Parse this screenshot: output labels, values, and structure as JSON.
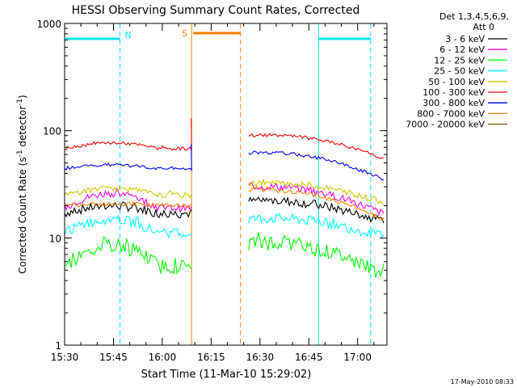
{
  "chart_data": {
    "type": "line",
    "title": "HESSI Observing Summary Count Rates, Corrected",
    "xlabel": "Start Time (11-Mar-10 15:29:02)",
    "ylabel": "Corrected Count Rate (s⁻¹ detector⁻¹)",
    "ylabel_parts": {
      "main": "Corrected Count Rate (s",
      "exp1": "-1",
      "mid": " detector",
      "exp2": "-1",
      "close": ")"
    },
    "yscale": "log",
    "ylim": [
      1,
      1000
    ],
    "xlim_minutes": [
      15.5,
      17.15
    ],
    "x_ticks": [
      "15:30",
      "15:45",
      "16:00",
      "16:15",
      "16:30",
      "16:45",
      "17:00"
    ],
    "y_ticks": [
      "1",
      "10",
      "100",
      "1000"
    ],
    "legend_header": [
      "Det 1,3,4,5,6,9,",
      "Att 0"
    ],
    "legend_placement": "right",
    "timestamp": "17-May-2010 08:33",
    "annotations": {
      "night_label": "N",
      "saa_label": "S",
      "night_intervals": [
        [
          "15:29",
          "15:47"
        ],
        [
          "16:48",
          "17:04"
        ]
      ],
      "saa_interval": [
        "16:09",
        "16:24"
      ],
      "data_gap": [
        "16:09",
        "16:26"
      ]
    },
    "series": [
      {
        "name": "3 - 6 keV",
        "color": "#000000",
        "values_start": 17,
        "values_peak": 20,
        "values_after": 22,
        "values_end": 15
      },
      {
        "name": "6 - 12 keV",
        "color": "#ff00ff",
        "values_start": 19,
        "values_peak": 26,
        "values_after": 30,
        "values_end": 18
      },
      {
        "name": "12 - 25 keV",
        "color": "#00ff00",
        "values_start": 5.5,
        "values_peak": 8.5,
        "values_after": 9,
        "values_end": 5
      },
      {
        "name": "25 - 50 keV",
        "color": "#00ffff",
        "values_start": 11,
        "values_peak": 15,
        "values_after": 15,
        "values_end": 11
      },
      {
        "name": "50 - 100 keV",
        "color": "#cccc00",
        "values_start": 25,
        "values_peak": 29,
        "values_after": 32,
        "values_end": 23
      },
      {
        "name": "100 - 300 keV",
        "color": "#ff0000",
        "values_start": 68,
        "values_peak": 77,
        "values_after": 90,
        "values_end": 59
      },
      {
        "name": "300 - 800 keV",
        "color": "#0000ff",
        "values_start": 44,
        "values_peak": 48,
        "values_after": 62,
        "values_end": 38
      },
      {
        "name": "800 - 7000 keV",
        "color": "#ff8000",
        "values_start": 20,
        "values_peak": 21,
        "values_after": 28,
        "values_end": 16
      },
      {
        "name": "7000 - 20000 keV",
        "color": "#806000",
        "values_start": 0,
        "values_peak": 0,
        "values_after": 0,
        "values_end": 0
      }
    ]
  }
}
